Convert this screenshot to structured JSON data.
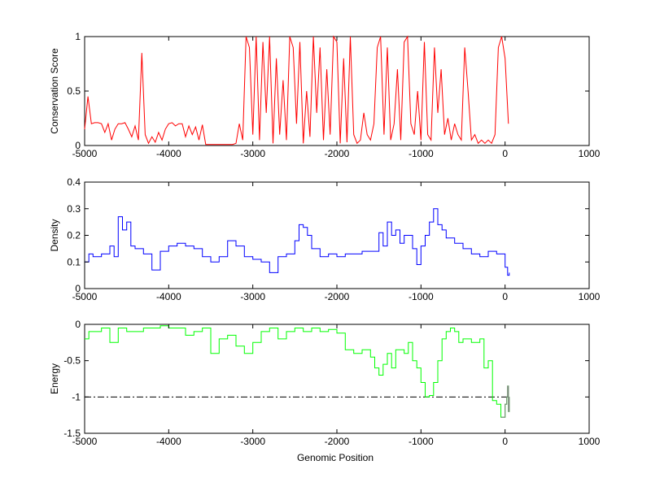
{
  "chart_data": [
    {
      "type": "line",
      "ylabel": "Conservation Score",
      "xlim": [
        -5000,
        1000
      ],
      "ylim": [
        0,
        1
      ],
      "xticks": [
        -5000,
        -4000,
        -3000,
        -2000,
        -1000,
        0,
        1000
      ],
      "yticks": [
        0,
        0.5,
        1
      ],
      "ytick_labels": [
        "0",
        "0.5",
        "1"
      ],
      "grid": false,
      "color": "#ff0000",
      "series": [
        {
          "name": "conservation",
          "x_start": -5000,
          "x_step": 40,
          "y": [
            0.15,
            0.45,
            0.2,
            0.21,
            0.21,
            0.2,
            0.12,
            0.2,
            0.05,
            0.15,
            0.2,
            0.2,
            0.21,
            0.15,
            0.08,
            0.18,
            0.05,
            0.85,
            0.1,
            0.02,
            0.08,
            0.03,
            0.12,
            0.05,
            0.15,
            0.2,
            0.21,
            0.18,
            0.2,
            0.2,
            0.08,
            0.18,
            0.1,
            0.17,
            0.05,
            0.19,
            0.01,
            0.01,
            0.01,
            0.01,
            0.01,
            0.01,
            0.01,
            0.01,
            0.01,
            0.02,
            0.2,
            0.05,
            1,
            0.9,
            0.1,
            1,
            0.05,
            0.95,
            0.3,
            1,
            0.02,
            0.8,
            0.1,
            0.6,
            0.05,
            1,
            0.9,
            0.2,
            0.95,
            0.02,
            0.5,
            0.08,
            1,
            0.3,
            0.9,
            0.05,
            0.7,
            0.1,
            1,
            0.95,
            0.02,
            0.8,
            0.03,
            1,
            0.1,
            0.02,
            0.05,
            0.3,
            0.1,
            0.05,
            0.2,
            0.9,
            1,
            0.1,
            0.9,
            0.05,
            0.2,
            0.7,
            0.05,
            0.95,
            1,
            0.2,
            0.1,
            0.5,
            0.05,
            0.95,
            0.1,
            0.05,
            0.9,
            0.3,
            0.7,
            0.1,
            0.25,
            0.05,
            0.2,
            0.1,
            0.05,
            0.9,
            0.5,
            0.05,
            0.1,
            0.02,
            0.05,
            0.02,
            0.05,
            0.02,
            0.1,
            0.9,
            1,
            0.8,
            0.2
          ]
        }
      ]
    },
    {
      "type": "line",
      "ylabel": "Density",
      "xlim": [
        -5000,
        1000
      ],
      "ylim": [
        0,
        0.4
      ],
      "xticks": [
        -5000,
        -4000,
        -3000,
        -2000,
        -1000,
        0,
        1000
      ],
      "yticks": [
        0,
        0.1,
        0.2,
        0.3,
        0.4
      ],
      "ytick_labels": [
        "0",
        "0.1",
        "0.2",
        "0.3",
        "0.4"
      ],
      "grid": false,
      "color": "#0000ff",
      "series": [
        {
          "name": "density",
          "x": [
            -5000,
            -4950,
            -4900,
            -4800,
            -4700,
            -4650,
            -4600,
            -4550,
            -4500,
            -4450,
            -4400,
            -4300,
            -4200,
            -4100,
            -4000,
            -3900,
            -3800,
            -3700,
            -3600,
            -3500,
            -3400,
            -3300,
            -3200,
            -3100,
            -3000,
            -2900,
            -2800,
            -2700,
            -2600,
            -2500,
            -2450,
            -2400,
            -2350,
            -2300,
            -2200,
            -2100,
            -2000,
            -1900,
            -1800,
            -1700,
            -1600,
            -1500,
            -1450,
            -1400,
            -1350,
            -1300,
            -1250,
            -1200,
            -1100,
            -1050,
            -1000,
            -950,
            -900,
            -850,
            -800,
            -750,
            -700,
            -600,
            -500,
            -400,
            -300,
            -200,
            -100,
            0,
            30,
            50
          ],
          "y": [
            0.1,
            0.13,
            0.12,
            0.13,
            0.16,
            0.12,
            0.27,
            0.22,
            0.25,
            0.16,
            0.15,
            0.13,
            0.07,
            0.14,
            0.16,
            0.17,
            0.16,
            0.15,
            0.12,
            0.1,
            0.12,
            0.18,
            0.16,
            0.12,
            0.11,
            0.1,
            0.06,
            0.12,
            0.13,
            0.18,
            0.24,
            0.23,
            0.2,
            0.15,
            0.12,
            0.13,
            0.12,
            0.13,
            0.13,
            0.14,
            0.14,
            0.21,
            0.16,
            0.25,
            0.2,
            0.22,
            0.17,
            0.2,
            0.15,
            0.09,
            0.16,
            0.2,
            0.25,
            0.3,
            0.24,
            0.22,
            0.19,
            0.17,
            0.15,
            0.13,
            0.12,
            0.14,
            0.13,
            0.08,
            0.05,
            0.06
          ]
        }
      ]
    },
    {
      "type": "line",
      "ylabel": "Energy",
      "xlabel": "Genomic Position",
      "xlim": [
        -5000,
        1000
      ],
      "ylim": [
        -1.5,
        0
      ],
      "xticks": [
        -5000,
        -4000,
        -3000,
        -2000,
        -1000,
        0,
        1000
      ],
      "yticks": [
        -1.5,
        -1,
        -0.5,
        0
      ],
      "ytick_labels": [
        "-1.5",
        "-1",
        "-0.5",
        "0"
      ],
      "grid": false,
      "color": "#00ff00",
      "secondary_color": "#808080",
      "threshold": {
        "y": -1,
        "color": "#000000",
        "style": "dash-dot"
      },
      "series": [
        {
          "name": "energy",
          "x": [
            -5000,
            -4950,
            -4800,
            -4700,
            -4600,
            -4500,
            -4300,
            -4100,
            -4000,
            -3800,
            -3700,
            -3600,
            -3500,
            -3400,
            -3300,
            -3200,
            -3100,
            -3000,
            -2900,
            -2800,
            -2700,
            -2600,
            -2500,
            -2400,
            -2300,
            -2200,
            -2100,
            -2000,
            -1900,
            -1800,
            -1700,
            -1600,
            -1550,
            -1500,
            -1450,
            -1400,
            -1350,
            -1300,
            -1200,
            -1150,
            -1100,
            -1050,
            -1000,
            -950,
            -900,
            -850,
            -800,
            -750,
            -700,
            -650,
            -600,
            -550,
            -500,
            -400,
            -300,
            -250,
            -200,
            -150,
            -100,
            -50,
            0,
            20,
            30,
            40,
            50
          ],
          "y": [
            -0.2,
            -0.1,
            -0.05,
            -0.25,
            -0.05,
            -0.1,
            -0.05,
            -0.02,
            -0.05,
            -0.15,
            -0.1,
            -0.05,
            -0.4,
            -0.2,
            -0.15,
            -0.3,
            -0.4,
            -0.25,
            -0.1,
            -0.05,
            -0.2,
            -0.1,
            -0.05,
            -0.1,
            -0.05,
            -0.1,
            -0.07,
            -0.12,
            -0.35,
            -0.4,
            -0.35,
            -0.45,
            -0.6,
            -0.7,
            -0.55,
            -0.4,
            -0.6,
            -0.35,
            -0.4,
            -0.25,
            -0.5,
            -0.6,
            -0.8,
            -1.0,
            -0.98,
            -0.8,
            -0.5,
            -0.2,
            -0.1,
            -0.05,
            -0.1,
            -0.25,
            -0.2,
            -0.25,
            -0.2,
            -0.6,
            -0.5,
            -1.05,
            -1.1,
            -1.28,
            -1.1,
            -1.0,
            -0.85,
            -1.2,
            -1.0
          ]
        }
      ]
    }
  ]
}
